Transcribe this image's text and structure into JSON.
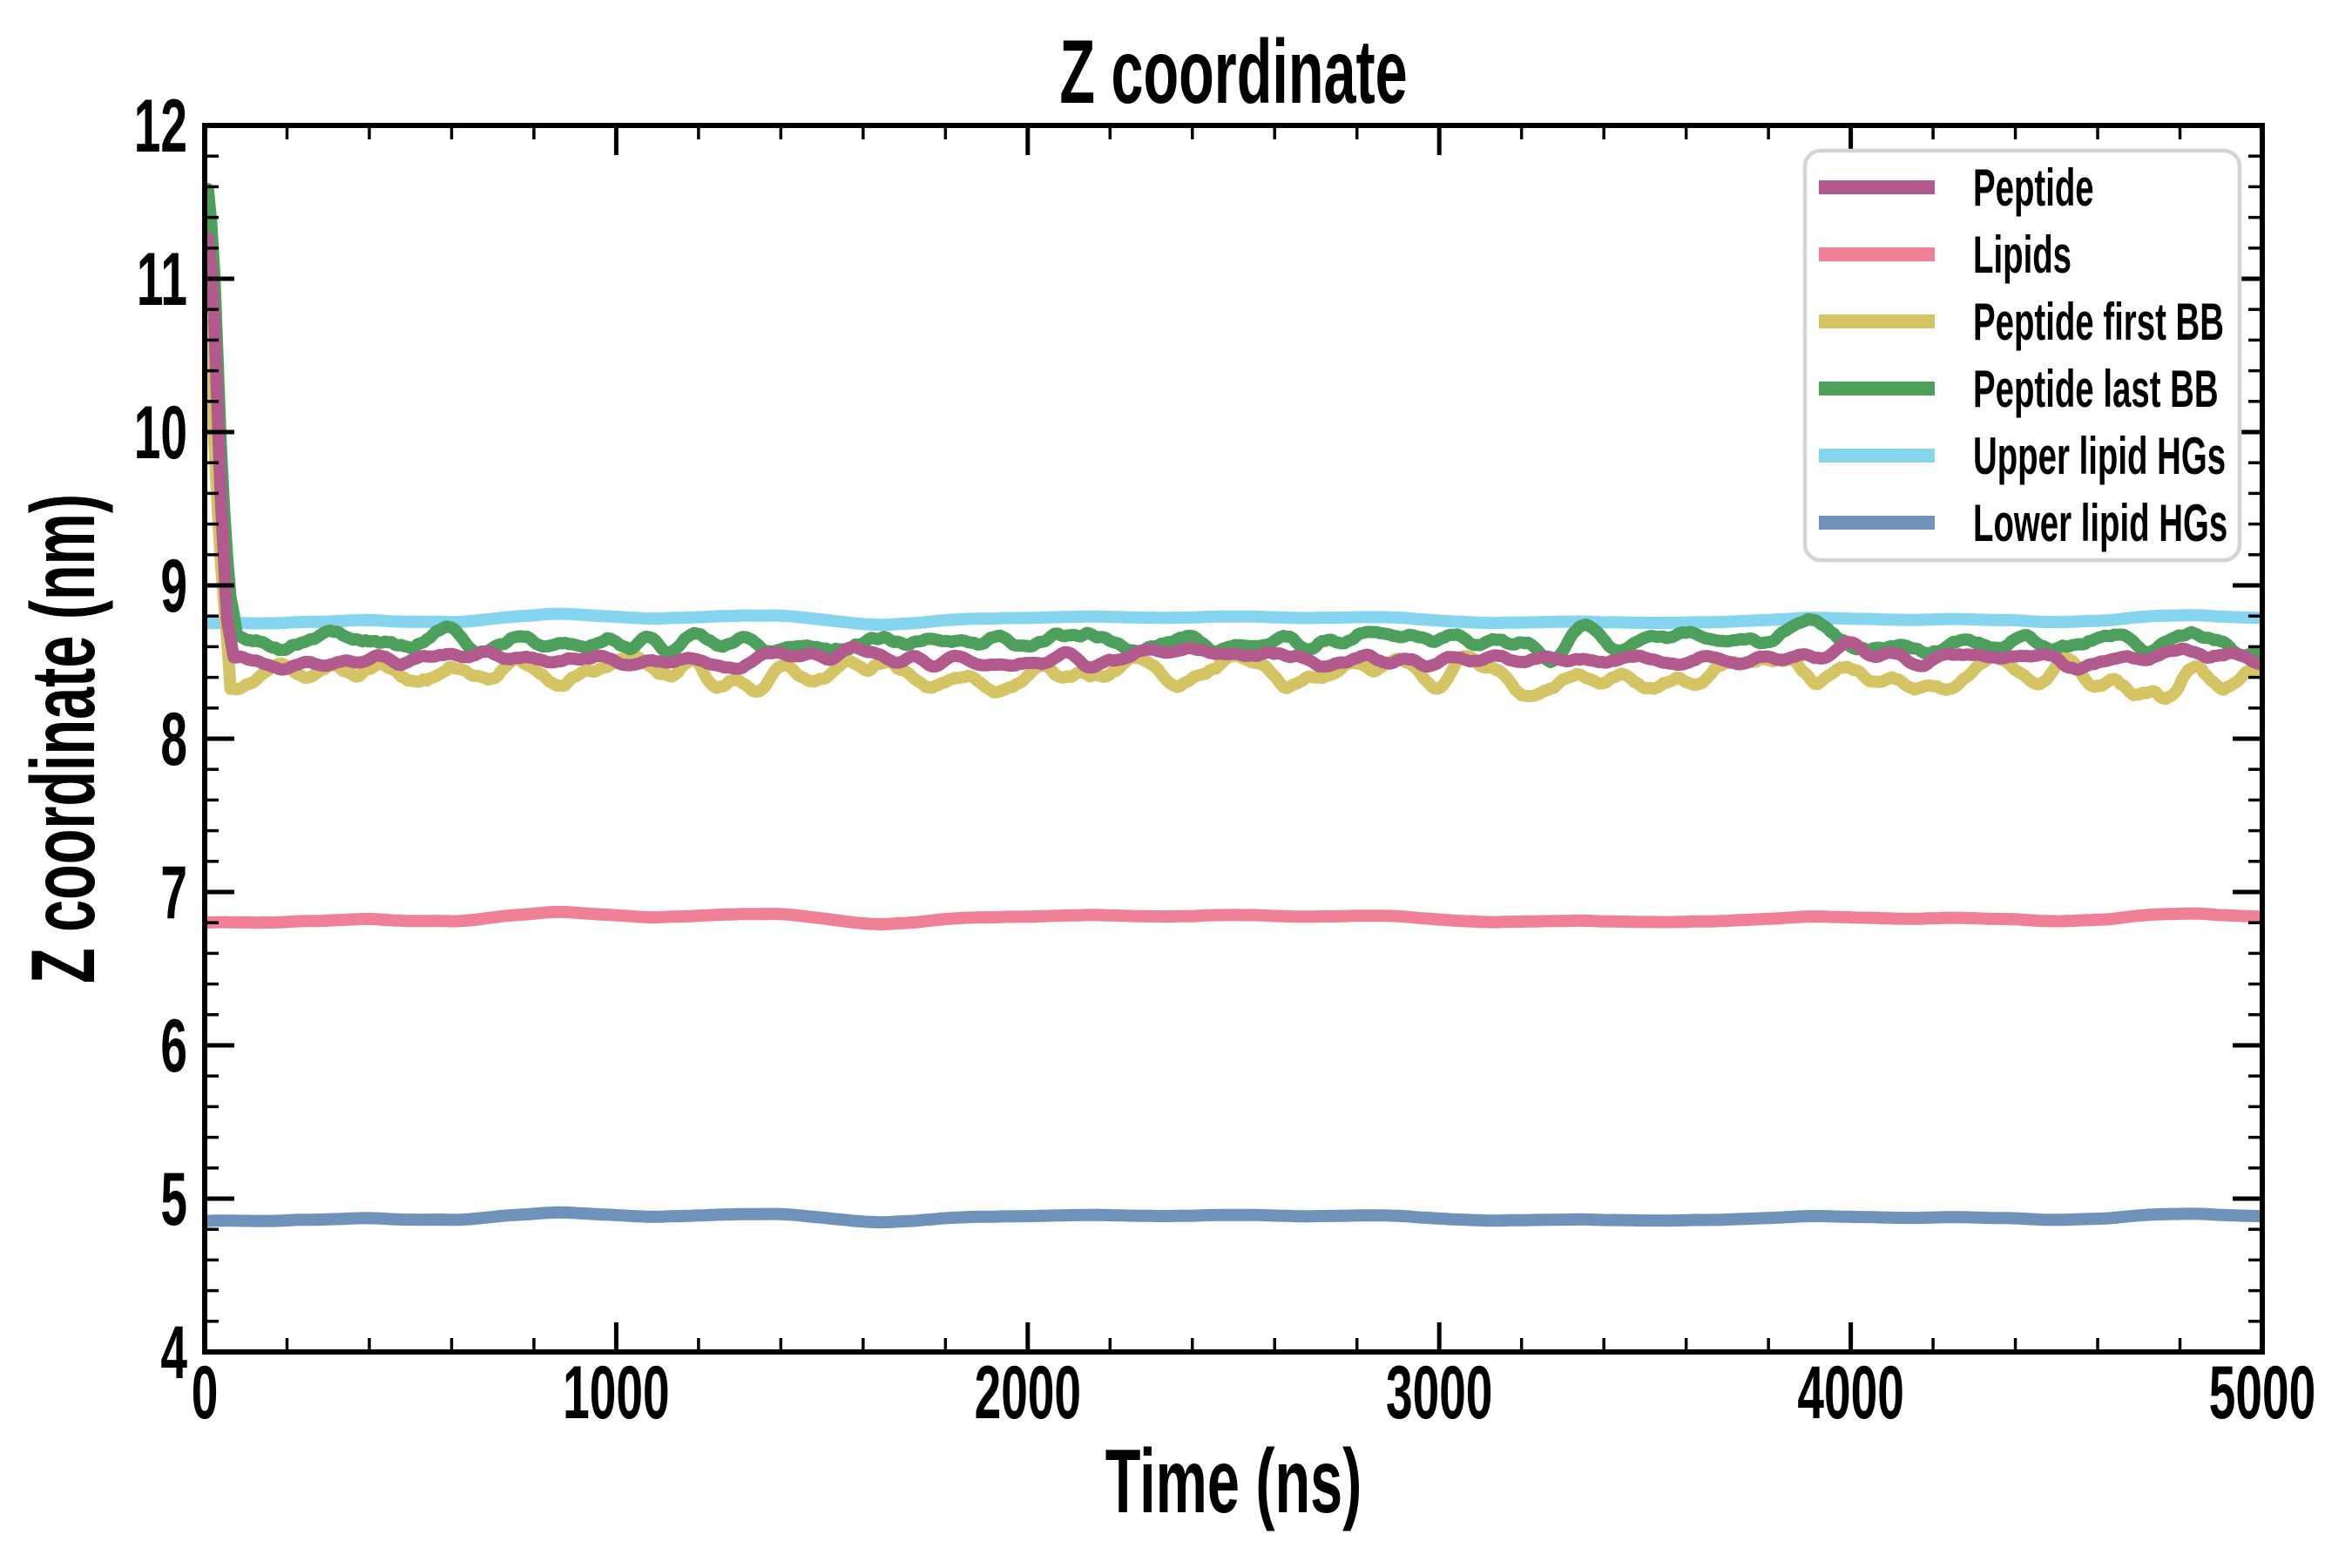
{
  "chart_data": {
    "type": "line",
    "title": "Z coordinate",
    "xlabel": "Time (ns)",
    "ylabel": "Z coordinate (nm)",
    "xlim": [
      0,
      5000
    ],
    "ylim": [
      4,
      12
    ],
    "xticks": [
      0,
      1000,
      2000,
      3000,
      4000,
      5000
    ],
    "yticks": [
      4,
      5,
      6,
      7,
      8,
      9,
      10,
      11,
      12
    ],
    "x_minor_step": 200,
    "y_minor_step": 0.2,
    "grid": false,
    "line_width": 14,
    "axis_color": "#000000",
    "legend": {
      "position": "upper right",
      "border_color": "#d4d4d4",
      "background": "#ffffff"
    },
    "series": [
      {
        "name": "Peptide",
        "color": "#b25a8d",
        "baseline": 8.52,
        "noise_amp": 0.11,
        "smooth": 3,
        "seed": 42,
        "points_n": 640,
        "zorder": 6,
        "start_spike": [
          [
            0,
            11.12
          ],
          [
            10,
            11.3
          ],
          [
            22,
            10.8
          ],
          [
            40,
            9.5
          ],
          [
            55,
            8.75
          ],
          [
            70,
            8.55
          ]
        ]
      },
      {
        "name": "Lipids",
        "color": "#ef8095",
        "baseline": 6.82,
        "noise_amp": 0.05,
        "smooth": 9,
        "seed": 7,
        "points_n": 420,
        "zorder": 1,
        "start_spike": null
      },
      {
        "name": "Peptide first BB",
        "color": "#d5c464",
        "baseline": 8.42,
        "noise_amp": 0.16,
        "smooth": 3,
        "seed": 99,
        "points_n": 640,
        "zorder": 4,
        "start_spike": [
          [
            0,
            10.7
          ],
          [
            18,
            10.2
          ],
          [
            38,
            9.2
          ],
          [
            60,
            8.5
          ]
        ]
      },
      {
        "name": "Peptide last BB",
        "color": "#4da05b",
        "baseline": 8.64,
        "noise_amp": 0.14,
        "smooth": 3,
        "seed": 5,
        "points_n": 640,
        "zorder": 5,
        "start_spike": [
          [
            0,
            11.45
          ],
          [
            10,
            11.62
          ],
          [
            24,
            11.0
          ],
          [
            42,
            9.7
          ],
          [
            60,
            8.95
          ],
          [
            78,
            8.7
          ]
        ]
      },
      {
        "name": "Upper lipid HGs",
        "color": "#85d5f1",
        "baseline": 8.77,
        "noise_amp": 0.045,
        "smooth": 9,
        "seed": 7,
        "points_n": 420,
        "zorder": 3,
        "start_spike": null
      },
      {
        "name": "Lower lipid HGs",
        "color": "#6e92ba",
        "baseline": 4.87,
        "noise_amp": 0.04,
        "smooth": 9,
        "seed": 7,
        "points_n": 420,
        "zorder": 2,
        "start_spike": null
      }
    ]
  }
}
